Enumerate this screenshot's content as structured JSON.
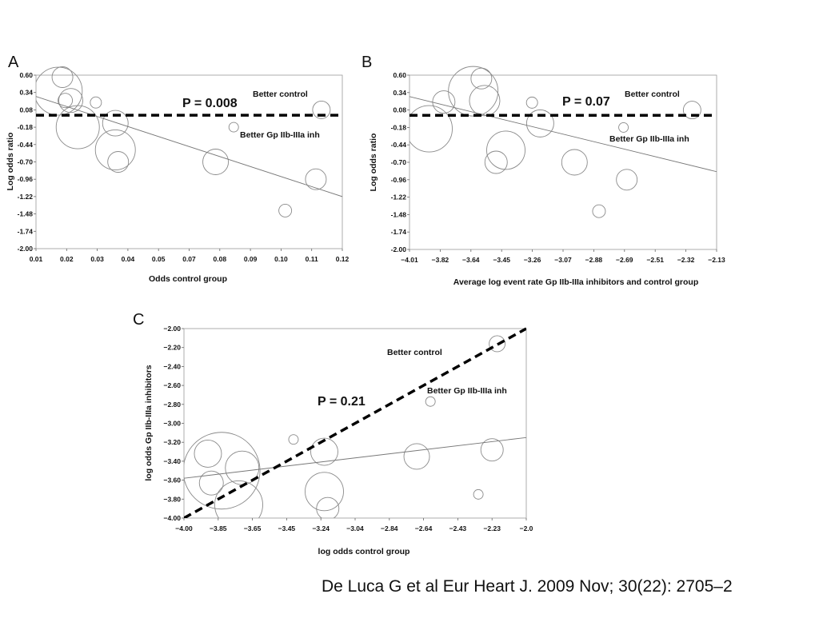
{
  "caption": "De Luca G et al Eur Heart J. 2009 Nov; 30(22): 2705–2",
  "chart_data": [
    {
      "panel": "A",
      "type": "scatter",
      "bubble": true,
      "xlabel": "Odds control group",
      "ylabel": "Log odds ratio",
      "x_ticks": [
        "0.01",
        "0.02",
        "0.03",
        "0.04",
        "0.05",
        "0.07",
        "0.08",
        "0.09",
        "0.10",
        "0.11",
        "0.12"
      ],
      "y_ticks": [
        "0.60",
        "0.34",
        "0.08",
        "-0.18",
        "-0.44",
        "-0.70",
        "-0.96",
        "-1.22",
        "-1.48",
        "-1.74",
        "-2.00"
      ],
      "xlim": [
        0.01,
        0.12
      ],
      "ylim": [
        -2.0,
        0.6
      ],
      "ref_y": 0.0,
      "annotations": {
        "p_value": "P = 0.008",
        "upper": "Better control",
        "lower": "Better Gp IIb-IIIa inh"
      },
      "trend": {
        "x": [
          0.01,
          0.12
        ],
        "y": [
          0.28,
          -1.22
        ]
      },
      "points": [
        {
          "x": 0.018,
          "y": 0.36,
          "size": 30
        },
        {
          "x": 0.0195,
          "y": 0.57,
          "size": 13
        },
        {
          "x": 0.0205,
          "y": 0.22,
          "size": 9
        },
        {
          "x": 0.0225,
          "y": 0.22,
          "size": 15
        },
        {
          "x": 0.025,
          "y": -0.18,
          "size": 27
        },
        {
          "x": 0.0315,
          "y": 0.19,
          "size": 7
        },
        {
          "x": 0.0385,
          "y": -0.12,
          "size": 16
        },
        {
          "x": 0.0385,
          "y": -0.52,
          "size": 25
        },
        {
          "x": 0.0395,
          "y": -0.7,
          "size": 13
        },
        {
          "x": 0.0745,
          "y": -0.7,
          "size": 16
        },
        {
          "x": 0.081,
          "y": -0.18,
          "size": 6
        },
        {
          "x": 0.0995,
          "y": -1.43,
          "size": 8
        },
        {
          "x": 0.1105,
          "y": -0.96,
          "size": 13
        },
        {
          "x": 0.1125,
          "y": 0.08,
          "size": 11
        }
      ]
    },
    {
      "panel": "B",
      "type": "scatter",
      "bubble": true,
      "xlabel": "Average log event rate Gp IIb-IIIa inhibitors and control group",
      "ylabel": "Log odds ratio",
      "x_ticks": [
        "−4.01",
        "−3.82",
        "−3.64",
        "−3.45",
        "−3.26",
        "−3.07",
        "−2.88",
        "−2.69",
        "−2.51",
        "−2.32",
        "−2.13"
      ],
      "y_ticks": [
        "0.60",
        "0.34",
        "0.08",
        "-0.18",
        "-0.44",
        "-0.70",
        "-0.96",
        "-1.22",
        "-1.48",
        "-1.74",
        "-2.00"
      ],
      "xlim": [
        -4.01,
        -2.13
      ],
      "ylim": [
        -2.0,
        0.6
      ],
      "ref_y": 0.0,
      "annotations": {
        "p_value": "P = 0.07",
        "upper": "Better control",
        "lower": "Better Gp IIb-IIIa inh"
      },
      "trend": {
        "x": [
          -4.01,
          -2.13
        ],
        "y": [
          0.28,
          -0.84
        ]
      },
      "points": [
        {
          "x": -3.62,
          "y": 0.36,
          "size": 31
        },
        {
          "x": -3.57,
          "y": 0.55,
          "size": 13
        },
        {
          "x": -3.55,
          "y": 0.22,
          "size": 19
        },
        {
          "x": -3.8,
          "y": 0.2,
          "size": 14
        },
        {
          "x": -3.89,
          "y": -0.2,
          "size": 29
        },
        {
          "x": -3.42,
          "y": -0.52,
          "size": 24
        },
        {
          "x": -3.48,
          "y": -0.7,
          "size": 14
        },
        {
          "x": -3.26,
          "y": 0.19,
          "size": 7
        },
        {
          "x": -3.21,
          "y": -0.12,
          "size": 17
        },
        {
          "x": -3.0,
          "y": -0.7,
          "size": 16
        },
        {
          "x": -2.7,
          "y": -0.18,
          "size": 6
        },
        {
          "x": -2.85,
          "y": -1.43,
          "size": 8
        },
        {
          "x": -2.68,
          "y": -0.96,
          "size": 13
        },
        {
          "x": -2.28,
          "y": 0.08,
          "size": 11
        }
      ]
    },
    {
      "panel": "C",
      "type": "scatter",
      "bubble": true,
      "xlabel": "log odds control group",
      "ylabel": "log odds Gp IIb-IIIa inhibitors",
      "x_ticks": [
        "−4.00",
        "−3.85",
        "−3.65",
        "−3.45",
        "−3.24",
        "−3.04",
        "−2.84",
        "−2.64",
        "−2.43",
        "−2.23",
        "−2.0"
      ],
      "y_ticks": [
        "−2.00",
        "−2.20",
        "−2.40",
        "−2.60",
        "−2.80",
        "−3.00",
        "−3.20",
        "−3.40",
        "−3.60",
        "−3.80",
        "−4.00"
      ],
      "xlim": [
        -4.0,
        -2.0
      ],
      "ylim": [
        -4.0,
        -2.0
      ],
      "ref_line": {
        "x": [
          -4.0,
          -2.0
        ],
        "y": [
          -4.0,
          -2.0
        ]
      },
      "annotations": {
        "p_value": "P = 0.21",
        "upper": "Better control",
        "lower": "Better Gp IIb-IIIa inh"
      },
      "trend": {
        "x": [
          -4.0,
          -2.0
        ],
        "y": [
          -3.58,
          -3.15
        ]
      },
      "points": [
        {
          "x": -3.78,
          "y": -3.5,
          "size": 48
        },
        {
          "x": -3.86,
          "y": -3.32,
          "size": 17
        },
        {
          "x": -3.84,
          "y": -3.63,
          "size": 15
        },
        {
          "x": -3.66,
          "y": -3.47,
          "size": 21
        },
        {
          "x": -3.68,
          "y": -3.86,
          "size": 30
        },
        {
          "x": -3.36,
          "y": -3.17,
          "size": 6
        },
        {
          "x": -3.18,
          "y": -3.3,
          "size": 17
        },
        {
          "x": -3.18,
          "y": -3.72,
          "size": 24
        },
        {
          "x": -3.16,
          "y": -3.9,
          "size": 14
        },
        {
          "x": -2.64,
          "y": -3.35,
          "size": 16
        },
        {
          "x": -2.56,
          "y": -2.77,
          "size": 6
        },
        {
          "x": -2.28,
          "y": -3.75,
          "size": 6
        },
        {
          "x": -2.2,
          "y": -3.28,
          "size": 14
        },
        {
          "x": -2.17,
          "y": -2.16,
          "size": 10
        }
      ]
    }
  ]
}
